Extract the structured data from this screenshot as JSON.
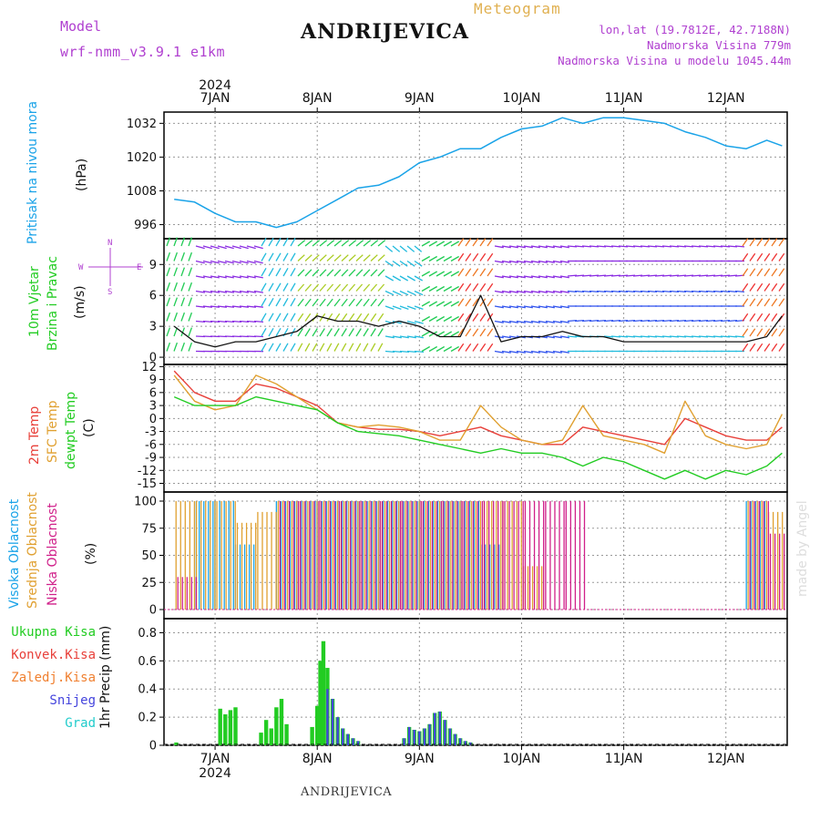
{
  "header": {
    "model_label": "Model",
    "model_name": "wrf-nmm_v3.9.1 e1km",
    "station": "ANDRIJEVICA",
    "meteogram": "Meteogram",
    "lonlat": "lon,lat (19.7812E, 42.7188N)",
    "elevation": "Nadmorska Visina 779m",
    "model_elevation": "Nadmorska Visina u modelu 1045.44m"
  },
  "footer": {
    "station": "ANDRIJEVICA",
    "credit": "made by Angel"
  },
  "axis": {
    "year": "2024",
    "days": [
      "7JAN",
      "8JAN",
      "9JAN",
      "10JAN",
      "11JAN",
      "12JAN"
    ]
  },
  "labels": {
    "pressure": [
      "Pritisak na nivou mora",
      "(hPa)"
    ],
    "wind": [
      "10m Vjetar",
      "Brzina i Pravac",
      "(m/s)"
    ],
    "wind_compass": [
      "N",
      "S",
      "W",
      "E"
    ],
    "temp": [
      "2m Temp",
      "SFC Temp",
      "dewpt Temp",
      "(C)"
    ],
    "cloud": [
      "Visoka Oblacnost",
      "Srednja Oblacnost",
      "Niska Oblacnost",
      "(%)"
    ],
    "precip": [
      "Ukupna Kisa",
      "Konvek.Kisa",
      "Zaledj.Kisa",
      "Snijeg",
      "Grad",
      "1hr Precip (mm)"
    ]
  },
  "colors": {
    "pressure": "#1aa3e8",
    "temp2m": "#e8403a",
    "sfc": "#e0a030",
    "dewpt": "#22cc22",
    "cloud_high": "#1aa3e8",
    "cloud_mid": "#e0a030",
    "cloud_low": "#d0208a",
    "precip_total": "#22cc22",
    "precip_conv": "#e8403a",
    "precip_frozen": "#f08030",
    "snow": "#4444dd",
    "hail": "#22cccc",
    "purple": "#b040d0"
  },
  "chart_data": [
    {
      "type": "line",
      "title": "Pritisak na nivou mora",
      "ylabel": "(hPa)",
      "yticks": [
        996,
        1008,
        1020,
        1032
      ],
      "ylim": [
        991,
        1036
      ],
      "x_days": [
        6.6,
        6.8,
        7.0,
        7.2,
        7.4,
        7.6,
        7.8,
        8.0,
        8.2,
        8.4,
        8.6,
        8.8,
        9.0,
        9.2,
        9.4,
        9.6,
        9.8,
        10.0,
        10.2,
        10.4,
        10.6,
        10.8,
        11.0,
        11.2,
        11.4,
        11.6,
        11.8,
        12.0,
        12.2,
        12.4,
        12.55
      ],
      "series": [
        {
          "values": [
            1005,
            1004,
            1000,
            997,
            997,
            995,
            997,
            1001,
            1005,
            1009,
            1010,
            1013,
            1018,
            1020,
            1023,
            1023,
            1027,
            1030,
            1031,
            1034,
            1032,
            1034,
            1034,
            1033,
            1032,
            1029,
            1027,
            1024,
            1023,
            1026,
            1024
          ]
        }
      ]
    },
    {
      "type": "line",
      "title": "10m Vjetar Brzina i Pravac",
      "ylabel": "(m/s)",
      "yticks": [
        0,
        3,
        6,
        9
      ],
      "ylim": [
        -0.7,
        11.5
      ],
      "x_days": [
        6.6,
        6.8,
        7.0,
        7.2,
        7.4,
        7.6,
        7.8,
        8.0,
        8.2,
        8.4,
        8.6,
        8.8,
        9.0,
        9.2,
        9.4,
        9.6,
        9.8,
        10.0,
        10.2,
        10.4,
        10.6,
        10.8,
        11.0,
        11.2,
        11.4,
        11.6,
        11.8,
        12.0,
        12.2,
        12.4,
        12.55
      ],
      "series": [
        {
          "values": [
            3,
            1.5,
            1,
            1.5,
            1.5,
            2,
            2.5,
            4,
            3.5,
            3.5,
            3,
            3.5,
            3,
            2,
            2,
            6,
            1.5,
            2,
            2,
            2.5,
            2,
            2,
            1.5,
            1.5,
            1.5,
            1.5,
            1.5,
            1.5,
            1.5,
            2,
            4
          ]
        }
      ]
    },
    {
      "type": "line",
      "title": "2m Temp / SFC Temp / dewpt Temp",
      "ylabel": "(C)",
      "yticks": [
        12,
        9,
        6,
        3,
        0,
        -3,
        -6,
        -9,
        -12,
        -15
      ],
      "ylim": [
        -17,
        12.5
      ],
      "x_days": [
        6.6,
        6.8,
        7.0,
        7.2,
        7.4,
        7.6,
        7.8,
        8.0,
        8.2,
        8.4,
        8.6,
        8.8,
        9.0,
        9.2,
        9.4,
        9.6,
        9.8,
        10.0,
        10.2,
        10.4,
        10.6,
        10.8,
        11.0,
        11.2,
        11.4,
        11.6,
        11.8,
        12.0,
        12.2,
        12.4,
        12.55
      ],
      "series": [
        {
          "name": "2m Temp",
          "values": [
            11,
            6,
            4,
            4,
            8,
            7,
            5,
            3,
            -1,
            -2,
            -2.5,
            -2.5,
            -3,
            -4,
            -3,
            -2,
            -4,
            -5,
            -6,
            -6,
            -2,
            -3,
            -4,
            -5,
            -6,
            0,
            -2,
            -4,
            -5,
            -5,
            -2
          ]
        },
        {
          "name": "SFC Temp",
          "values": [
            10,
            4,
            2,
            3,
            10,
            8,
            5,
            2,
            -1,
            -2,
            -1.5,
            -2,
            -3,
            -5,
            -5,
            3,
            -2,
            -5,
            -6,
            -5,
            3,
            -4,
            -5,
            -6,
            -8,
            4,
            -4,
            -6,
            -7,
            -6,
            1
          ]
        },
        {
          "name": "dewpt Temp",
          "values": [
            5,
            3,
            3,
            3,
            5,
            4,
            3,
            2,
            -1,
            -3,
            -3.5,
            -4,
            -5,
            -6,
            -7,
            -8,
            -7,
            -8,
            -8,
            -9,
            -11,
            -9,
            -10,
            -12,
            -14,
            -12,
            -14,
            -12,
            -13,
            -11,
            -8
          ]
        }
      ]
    },
    {
      "type": "bar",
      "title": "Visoka / Srednja / Niska Oblacnost",
      "ylabel": "(%)",
      "yticks": [
        0,
        25,
        50,
        75,
        100
      ],
      "ylim": [
        0,
        100
      ],
      "x_days": [
        6.6,
        6.8,
        7.0,
        7.2,
        7.4,
        7.6,
        7.8,
        8.0,
        8.2,
        8.4,
        8.6,
        8.8,
        9.0,
        9.2,
        9.4,
        9.6,
        9.8,
        10.0,
        10.2,
        10.4,
        10.6,
        10.8,
        11.0,
        11.2,
        11.4,
        11.6,
        11.8,
        12.0,
        12.2,
        12.4,
        12.55
      ],
      "series": [
        {
          "name": "Visoka Oblacnost",
          "values": [
            0,
            100,
            100,
            60,
            0,
            100,
            100,
            100,
            100,
            100,
            100,
            100,
            100,
            100,
            100,
            60,
            0,
            0,
            0,
            0,
            0,
            0,
            0,
            0,
            0,
            0,
            0,
            0,
            100,
            0,
            0
          ]
        },
        {
          "name": "Srednja Oblacnost",
          "values": [
            100,
            100,
            100,
            80,
            90,
            100,
            100,
            100,
            100,
            100,
            100,
            100,
            100,
            100,
            100,
            100,
            100,
            40,
            0,
            0,
            0,
            0,
            0,
            0,
            0,
            0,
            0,
            0,
            100,
            90,
            0
          ]
        },
        {
          "name": "Niska Oblacnost",
          "values": [
            30,
            0,
            0,
            0,
            0,
            100,
            100,
            100,
            100,
            100,
            100,
            100,
            100,
            100,
            100,
            100,
            100,
            100,
            100,
            100,
            0,
            0,
            0,
            0,
            0,
            0,
            0,
            0,
            100,
            70,
            0
          ]
        }
      ]
    },
    {
      "type": "bar",
      "title": "1hr Precip",
      "ylabel": "1hr Precip (mm)",
      "yticks": [
        0,
        0.2,
        0.4,
        0.6,
        0.8
      ],
      "ylim": [
        0,
        0.9
      ],
      "x_days": [
        6.62,
        7.05,
        7.1,
        7.15,
        7.2,
        7.45,
        7.5,
        7.55,
        7.6,
        7.65,
        7.7,
        7.95,
        8.0,
        8.03,
        8.06,
        8.1,
        8.15,
        8.2,
        8.25,
        8.3,
        8.35,
        8.4,
        8.85,
        8.9,
        8.95,
        9.0,
        9.05,
        9.1,
        9.15,
        9.2,
        9.25,
        9.3,
        9.35,
        9.4,
        9.45,
        9.5
      ],
      "series": [
        {
          "name": "Ukupna Kisa",
          "values": [
            0.02,
            0.26,
            0.22,
            0.25,
            0.27,
            0.09,
            0.18,
            0.12,
            0.27,
            0.33,
            0.15,
            0.13,
            0.28,
            0.6,
            0.74,
            0.55,
            0.33,
            0.2,
            0.12,
            0.08,
            0.05,
            0.03,
            0.05,
            0.13,
            0.11,
            0.1,
            0.12,
            0.15,
            0.23,
            0.24,
            0.18,
            0.12,
            0.08,
            0.05,
            0.03,
            0.02
          ]
        },
        {
          "name": "Snijeg",
          "values": [
            0,
            0,
            0,
            0,
            0,
            0,
            0,
            0,
            0,
            0,
            0,
            0,
            0,
            0,
            0,
            0.4,
            0.33,
            0.2,
            0.12,
            0.08,
            0.05,
            0.03,
            0.05,
            0.13,
            0.11,
            0.1,
            0.12,
            0.15,
            0.23,
            0.24,
            0.18,
            0.12,
            0.08,
            0.05,
            0.03,
            0.02
          ]
        }
      ]
    }
  ]
}
